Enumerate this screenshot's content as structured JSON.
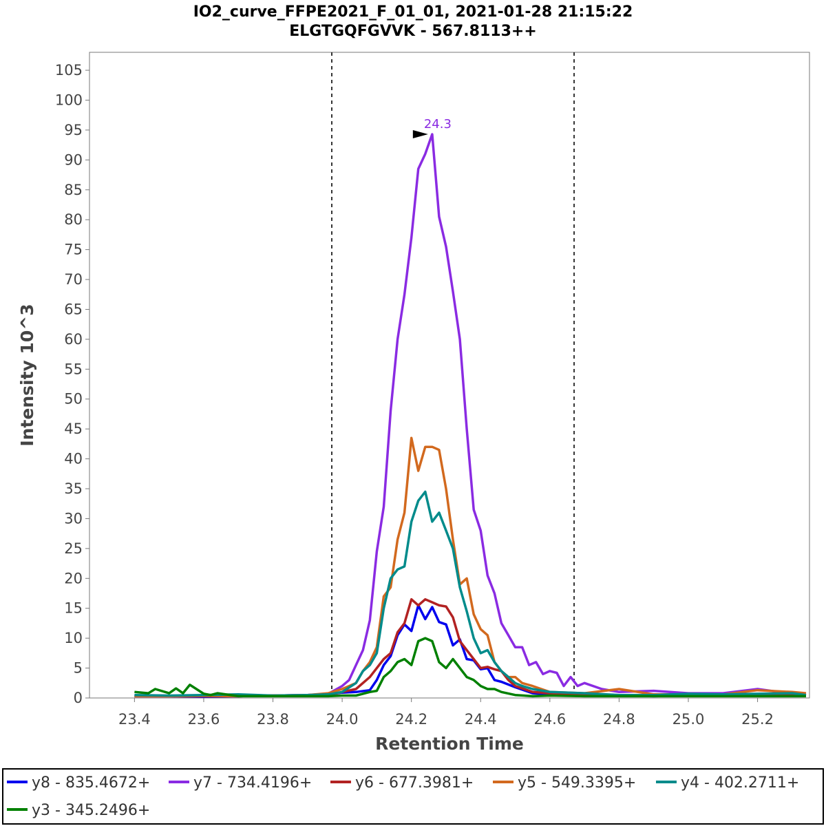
{
  "chart_data": {
    "type": "line",
    "title_line1": "IO2_curve_FFPE2021_F_01_01, 2021-01-28 21:15:22",
    "title_line2": "ELGTGQFGVVK - 567.8113++",
    "xlabel": "Retention Time",
    "ylabel": "Intensity 10^3",
    "xlim": [
      23.27,
      25.35
    ],
    "ylim": [
      0,
      108
    ],
    "x_ticks": [
      "23.4",
      "23.6",
      "23.8",
      "24.0",
      "24.2",
      "24.4",
      "24.6",
      "24.8",
      "25.0",
      "25.2"
    ],
    "y_ticks": [
      "0",
      "5",
      "10",
      "15",
      "20",
      "25",
      "30",
      "35",
      "40",
      "45",
      "50",
      "55",
      "60",
      "65",
      "70",
      "75",
      "80",
      "85",
      "90",
      "95",
      "100",
      "105"
    ],
    "boundaries": [
      23.97,
      24.67
    ],
    "peak_annotation": {
      "x": 24.26,
      "y": 94.3,
      "text": "24.3",
      "color": "#8a2be2"
    },
    "legend_position": "bottom",
    "series": [
      {
        "name": "y8 - 835.4672+",
        "color": "#0000ee",
        "x": [
          23.4,
          23.5,
          23.6,
          23.7,
          23.8,
          23.9,
          23.96,
          24.0,
          24.04,
          24.08,
          24.1,
          24.12,
          24.14,
          24.16,
          24.18,
          24.2,
          24.22,
          24.24,
          24.26,
          24.28,
          24.3,
          24.32,
          24.34,
          24.36,
          24.38,
          24.4,
          24.42,
          24.44,
          24.46,
          24.5,
          24.55,
          24.6,
          24.65,
          24.7,
          24.8,
          24.9,
          25.0,
          25.1,
          25.2,
          25.3,
          25.34
        ],
        "y": [
          0.3,
          0.3,
          0.2,
          0.3,
          0.4,
          0.5,
          0.6,
          0.9,
          1.0,
          1.3,
          3.0,
          5.5,
          7.0,
          10.5,
          12.3,
          11.2,
          15.5,
          13.2,
          15.2,
          12.7,
          12.3,
          8.8,
          9.8,
          6.5,
          6.3,
          4.8,
          5.0,
          3.0,
          2.7,
          1.8,
          0.8,
          0.6,
          0.4,
          0.5,
          0.4,
          0.3,
          0.4,
          0.5,
          0.4,
          0.5,
          0.4
        ]
      },
      {
        "name": "y7 - 734.4196+",
        "color": "#8a2be2",
        "x": [
          23.4,
          23.5,
          23.6,
          23.7,
          23.8,
          23.9,
          23.96,
          24.0,
          24.02,
          24.04,
          24.06,
          24.08,
          24.1,
          24.12,
          24.14,
          24.16,
          24.18,
          24.2,
          24.22,
          24.24,
          24.26,
          24.28,
          24.3,
          24.32,
          24.34,
          24.36,
          24.38,
          24.4,
          24.42,
          24.44,
          24.46,
          24.48,
          24.5,
          24.52,
          24.54,
          24.56,
          24.58,
          24.6,
          24.62,
          24.64,
          24.66,
          24.68,
          24.7,
          24.75,
          24.8,
          24.9,
          25.0,
          25.1,
          25.2,
          25.3,
          25.34
        ],
        "y": [
          0.3,
          0.3,
          0.3,
          0.3,
          0.4,
          0.5,
          0.7,
          2.0,
          3.0,
          5.5,
          8.0,
          13.0,
          24.5,
          32.0,
          48.0,
          60.0,
          67.5,
          77.0,
          88.5,
          91.0,
          94.3,
          80.5,
          75.5,
          68.0,
          60.0,
          45.0,
          31.5,
          28.0,
          20.5,
          17.5,
          12.5,
          10.5,
          8.5,
          8.5,
          5.5,
          6.0,
          4.0,
          4.5,
          4.2,
          2.0,
          3.5,
          2.0,
          2.5,
          1.5,
          1.0,
          1.2,
          0.8,
          0.8,
          1.5,
          0.7,
          0.8
        ]
      },
      {
        "name": "y6 - 677.3981+",
        "color": "#b22222",
        "x": [
          23.4,
          23.5,
          23.6,
          23.7,
          23.8,
          23.9,
          23.96,
          24.0,
          24.04,
          24.08,
          24.1,
          24.12,
          24.14,
          24.16,
          24.18,
          24.2,
          24.22,
          24.24,
          24.26,
          24.28,
          24.3,
          24.32,
          24.34,
          24.36,
          24.38,
          24.4,
          24.42,
          24.44,
          24.46,
          24.48,
          24.5,
          24.55,
          24.6,
          24.7,
          24.8,
          24.9,
          25.0,
          25.1,
          25.2,
          25.3,
          25.34
        ],
        "y": [
          0.3,
          0.3,
          0.3,
          0.3,
          0.4,
          0.4,
          0.5,
          1.0,
          1.5,
          3.5,
          5.0,
          6.5,
          7.5,
          11.0,
          12.5,
          16.5,
          15.5,
          16.5,
          16.0,
          15.5,
          15.3,
          13.5,
          9.5,
          8.0,
          6.5,
          5.0,
          5.2,
          4.8,
          4.5,
          3.0,
          2.0,
          1.0,
          0.8,
          0.6,
          0.4,
          0.4,
          0.4,
          0.4,
          0.4,
          0.4,
          0.4
        ]
      },
      {
        "name": "y5 - 549.3395+",
        "color": "#d2691e",
        "x": [
          23.4,
          23.5,
          23.6,
          23.7,
          23.8,
          23.9,
          23.96,
          24.0,
          24.04,
          24.06,
          24.08,
          24.1,
          24.12,
          24.14,
          24.16,
          24.18,
          24.2,
          24.22,
          24.24,
          24.26,
          24.28,
          24.3,
          24.32,
          24.34,
          24.36,
          24.38,
          24.4,
          24.42,
          24.44,
          24.46,
          24.48,
          24.5,
          24.52,
          24.55,
          24.6,
          24.7,
          24.8,
          24.9,
          25.0,
          25.1,
          25.2,
          25.3,
          25.34
        ],
        "y": [
          0.3,
          0.3,
          0.4,
          0.3,
          0.4,
          0.5,
          0.8,
          1.5,
          2.5,
          4.5,
          6.0,
          8.5,
          17.0,
          18.5,
          26.5,
          31.0,
          43.5,
          38.0,
          42.0,
          42.0,
          41.5,
          35.0,
          26.5,
          19.0,
          20.0,
          14.0,
          11.5,
          10.5,
          6.0,
          4.5,
          3.5,
          3.5,
          2.5,
          2.0,
          1.0,
          0.8,
          1.5,
          0.6,
          0.6,
          0.6,
          1.3,
          1.0,
          0.8
        ]
      },
      {
        "name": "y4 - 402.2711+",
        "color": "#008b8b",
        "x": [
          23.4,
          23.5,
          23.6,
          23.7,
          23.8,
          23.9,
          23.96,
          24.0,
          24.04,
          24.06,
          24.08,
          24.1,
          24.12,
          24.14,
          24.16,
          24.18,
          24.2,
          24.22,
          24.24,
          24.26,
          24.28,
          24.3,
          24.32,
          24.34,
          24.36,
          24.38,
          24.4,
          24.42,
          24.44,
          24.46,
          24.48,
          24.5,
          24.52,
          24.55,
          24.6,
          24.7,
          24.8,
          24.9,
          25.0,
          25.1,
          25.2,
          25.3,
          25.34
        ],
        "y": [
          0.5,
          0.4,
          0.5,
          0.6,
          0.4,
          0.5,
          0.6,
          1.0,
          2.5,
          4.5,
          5.5,
          7.5,
          15.0,
          20.0,
          21.5,
          22.0,
          29.5,
          33.0,
          34.5,
          29.5,
          31.0,
          28.0,
          25.0,
          18.5,
          14.5,
          10.0,
          7.5,
          8.0,
          6.0,
          4.5,
          3.5,
          2.5,
          2.0,
          1.5,
          1.0,
          0.8,
          0.5,
          0.5,
          0.7,
          0.6,
          0.7,
          0.8,
          0.5
        ]
      },
      {
        "name": "y3 - 345.2496+",
        "color": "#008000",
        "x": [
          23.4,
          23.44,
          23.46,
          23.5,
          23.52,
          23.54,
          23.56,
          23.6,
          23.62,
          23.64,
          23.7,
          23.8,
          23.9,
          23.96,
          24.0,
          24.04,
          24.08,
          24.1,
          24.12,
          24.14,
          24.16,
          24.18,
          24.2,
          24.22,
          24.24,
          24.26,
          24.28,
          24.3,
          24.32,
          24.34,
          24.36,
          24.38,
          24.4,
          24.42,
          24.44,
          24.46,
          24.5,
          24.55,
          24.6,
          24.7,
          24.8,
          24.9,
          25.0,
          25.1,
          25.2,
          25.3,
          25.34
        ],
        "y": [
          1.0,
          0.8,
          1.5,
          0.8,
          1.6,
          0.8,
          2.2,
          0.7,
          0.5,
          0.8,
          0.3,
          0.3,
          0.3,
          0.3,
          0.4,
          0.4,
          1.0,
          1.2,
          3.5,
          4.5,
          6.0,
          6.5,
          5.5,
          9.5,
          10.0,
          9.5,
          6.0,
          5.0,
          6.5,
          5.0,
          3.5,
          3.0,
          2.0,
          1.5,
          1.5,
          1.0,
          0.5,
          0.3,
          0.4,
          0.3,
          0.3,
          0.3,
          0.3,
          0.3,
          0.3,
          0.3,
          0.3
        ]
      }
    ]
  }
}
